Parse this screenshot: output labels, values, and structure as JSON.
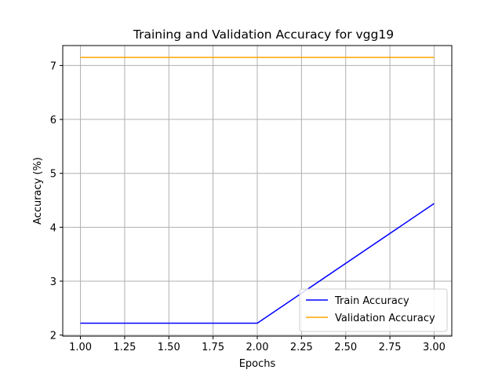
{
  "chart_data": {
    "type": "line",
    "title": "Training and Validation Accuracy for vgg19",
    "xlabel": "Epochs",
    "ylabel": "Accuracy (%)",
    "x": [
      1,
      2,
      3
    ],
    "xlim": [
      0.9,
      3.1
    ],
    "ylim": [
      1.98,
      7.37
    ],
    "xticks": [
      1.0,
      1.25,
      1.5,
      1.75,
      2.0,
      2.25,
      2.5,
      2.75,
      3.0
    ],
    "xtick_labels": [
      "1.00",
      "1.25",
      "1.50",
      "1.75",
      "2.00",
      "2.25",
      "2.50",
      "2.75",
      "3.00"
    ],
    "yticks": [
      2,
      3,
      4,
      5,
      6,
      7
    ],
    "ytick_labels": [
      "2",
      "3",
      "4",
      "5",
      "6",
      "7"
    ],
    "grid": true,
    "legend_position": "lower-right",
    "series": [
      {
        "name": "Train Accuracy",
        "color": "#0000ff",
        "values": [
          2.22,
          2.22,
          4.44
        ]
      },
      {
        "name": "Validation Accuracy",
        "color": "#ffa500",
        "values": [
          7.15,
          7.15,
          7.15
        ]
      }
    ]
  }
}
